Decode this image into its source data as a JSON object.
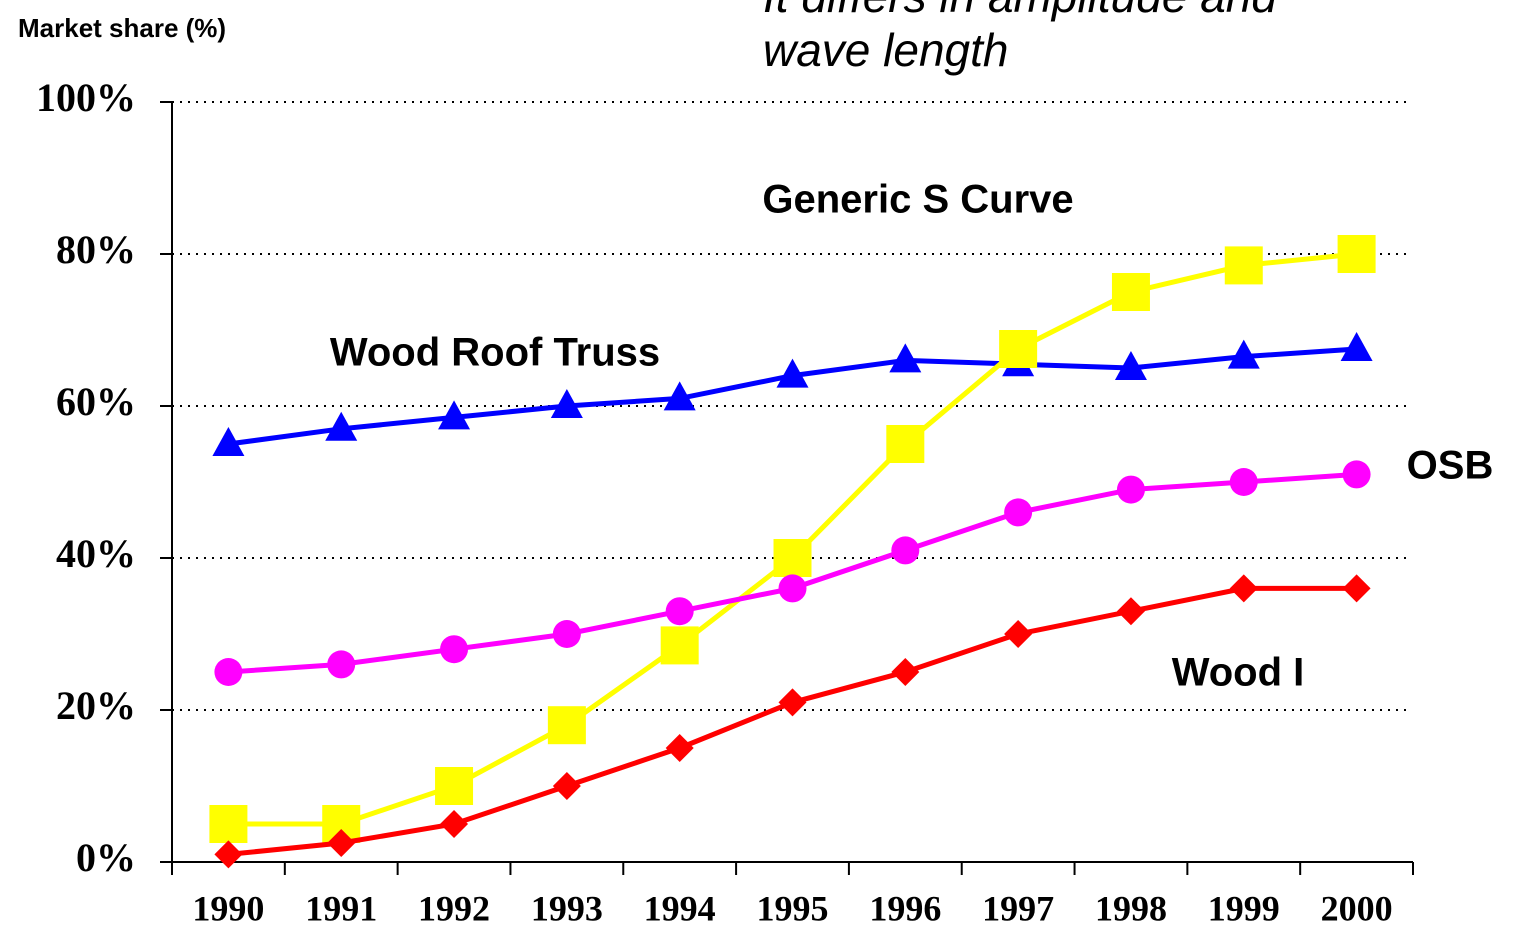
{
  "chart_data": {
    "type": "line",
    "title": [
      "It differs in amplitude and",
      "wave length"
    ],
    "y_label": "Market share (%)",
    "categories": [
      "1990",
      "1991",
      "1992",
      "1993",
      "1994",
      "1995",
      "1996",
      "1997",
      "1998",
      "1999",
      "2000"
    ],
    "ylim": [
      0,
      100
    ],
    "yticks": [
      {
        "value": 0,
        "label": "0%"
      },
      {
        "value": 20,
        "label": "20%"
      },
      {
        "value": 40,
        "label": "40%"
      },
      {
        "value": 60,
        "label": "60%"
      },
      {
        "value": 80,
        "label": "80%"
      },
      {
        "value": 100,
        "label": "100%"
      }
    ],
    "grid": true,
    "series": [
      {
        "name": "Wood Roof Truss",
        "color": "#0000ff",
        "marker": "triangle",
        "values": [
          55,
          57,
          58.5,
          60,
          61,
          64,
          66,
          65.5,
          65,
          66.5,
          67.5
        ]
      },
      {
        "name": "Generic S Curve",
        "color": "#ffff00",
        "marker": "square",
        "values": [
          5,
          5,
          10,
          18,
          28.5,
          40,
          55,
          67.5,
          75,
          78.5,
          80
        ]
      },
      {
        "name": "OSB",
        "color": "#ff00ff",
        "marker": "circle",
        "values": [
          25,
          26,
          28,
          30,
          33,
          36,
          41,
          46,
          49,
          50,
          51
        ]
      },
      {
        "name": "Wood I",
        "color": "#ff0000",
        "marker": "diamond",
        "values": [
          1,
          2.5,
          5,
          10,
          15,
          21,
          25,
          30,
          33,
          36,
          36
        ]
      }
    ]
  }
}
